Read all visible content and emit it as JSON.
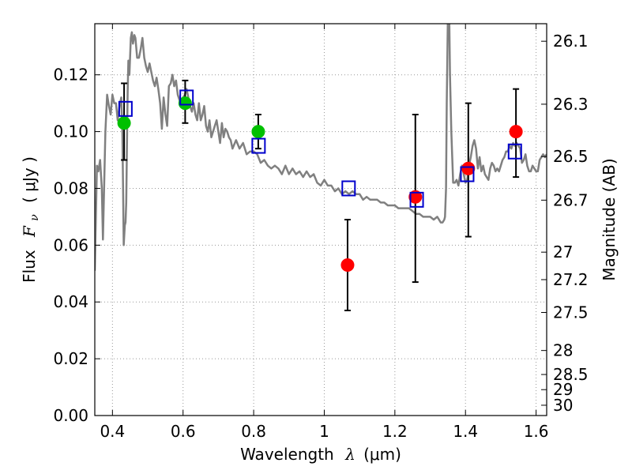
{
  "chart_data": {
    "type": "scatter",
    "xlabel": {
      "prefix": "Wavelength",
      "symbol": "λ",
      "unit": "(μm)"
    },
    "ylabel": {
      "prefix": "Flux",
      "symbol": "F",
      "subscript": "ν",
      "unit": "( μJy )"
    },
    "ylabel_right": "Magnitude (AB)",
    "xlim": [
      0.35,
      1.63
    ],
    "ylim": [
      0.0,
      0.138
    ],
    "grid": true,
    "x_ticks": [
      0.4,
      0.6,
      0.8,
      1.0,
      1.2,
      1.4,
      1.6
    ],
    "x_tick_labels": [
      "0.4",
      "0.6",
      "0.8",
      "1",
      "1.2",
      "1.4",
      "1.6"
    ],
    "y_ticks": [
      0.0,
      0.02,
      0.04,
      0.06,
      0.08,
      0.1,
      0.12
    ],
    "y_tick_labels": [
      "0.00",
      "0.02",
      "0.04",
      "0.06",
      "0.08",
      "0.10",
      "0.12"
    ],
    "mag_ticks": [
      26.1,
      26.3,
      26.5,
      26.7,
      27,
      27.2,
      27.5,
      28,
      28.5,
      29,
      30
    ],
    "mag_tick_labels": [
      "26.1",
      "26.3",
      "26.5",
      "26.7",
      "27",
      "27.2",
      "27.5",
      "28",
      "28.5",
      "29",
      "30"
    ],
    "colors": {
      "template": "#808080",
      "green_point": "#00c000",
      "red_point": "#ff0000",
      "model_square": "#0000cc",
      "errorbar": "#000000",
      "grid": "#999999"
    },
    "series": [
      {
        "kind": "template",
        "x": [
          0.35,
          0.356,
          0.36,
          0.365,
          0.37,
          0.373,
          0.376,
          0.38,
          0.385,
          0.39,
          0.395,
          0.4,
          0.405,
          0.41,
          0.415,
          0.42,
          0.425,
          0.428,
          0.43,
          0.432,
          0.435,
          0.437,
          0.439,
          0.441,
          0.443,
          0.445,
          0.448,
          0.452,
          0.455,
          0.458,
          0.462,
          0.465,
          0.47,
          0.475,
          0.48,
          0.485,
          0.49,
          0.495,
          0.5,
          0.505,
          0.51,
          0.515,
          0.52,
          0.525,
          0.53,
          0.535,
          0.54,
          0.545,
          0.55,
          0.555,
          0.56,
          0.565,
          0.57,
          0.575,
          0.58,
          0.585,
          0.59,
          0.595,
          0.6,
          0.605,
          0.61,
          0.615,
          0.62,
          0.625,
          0.63,
          0.635,
          0.64,
          0.645,
          0.65,
          0.655,
          0.66,
          0.665,
          0.67,
          0.675,
          0.68,
          0.685,
          0.69,
          0.695,
          0.7,
          0.705,
          0.71,
          0.715,
          0.72,
          0.725,
          0.73,
          0.735,
          0.74,
          0.75,
          0.76,
          0.77,
          0.78,
          0.79,
          0.8,
          0.81,
          0.82,
          0.83,
          0.84,
          0.85,
          0.86,
          0.87,
          0.88,
          0.89,
          0.9,
          0.91,
          0.92,
          0.93,
          0.94,
          0.95,
          0.96,
          0.97,
          0.98,
          0.99,
          1.0,
          1.01,
          1.02,
          1.03,
          1.04,
          1.05,
          1.06,
          1.07,
          1.08,
          1.09,
          1.1,
          1.11,
          1.12,
          1.13,
          1.14,
          1.15,
          1.16,
          1.17,
          1.18,
          1.19,
          1.2,
          1.21,
          1.22,
          1.23,
          1.24,
          1.25,
          1.26,
          1.27,
          1.28,
          1.29,
          1.3,
          1.31,
          1.32,
          1.33,
          1.335,
          1.34,
          1.342,
          1.345,
          1.347,
          1.35,
          1.352,
          1.354,
          1.356,
          1.36,
          1.365,
          1.37,
          1.375,
          1.38,
          1.385,
          1.39,
          1.395,
          1.4,
          1.405,
          1.41,
          1.415,
          1.42,
          1.425,
          1.43,
          1.435,
          1.44,
          1.445,
          1.45,
          1.455,
          1.46,
          1.465,
          1.47,
          1.475,
          1.48,
          1.485,
          1.49,
          1.495,
          1.5,
          1.505,
          1.51,
          1.515,
          1.52,
          1.525,
          1.53,
          1.535,
          1.54,
          1.545,
          1.55,
          1.555,
          1.56,
          1.565,
          1.57,
          1.575,
          1.58,
          1.585,
          1.59,
          1.595,
          1.6,
          1.605,
          1.61,
          1.615,
          1.62,
          1.625,
          1.63
        ],
        "y": [
          0.051,
          0.088,
          0.086,
          0.09,
          0.08,
          0.062,
          0.078,
          0.1,
          0.113,
          0.109,
          0.106,
          0.113,
          0.11,
          0.11,
          0.104,
          0.109,
          0.112,
          0.1,
          0.08,
          0.06,
          0.067,
          0.068,
          0.075,
          0.095,
          0.114,
          0.125,
          0.12,
          0.133,
          0.135,
          0.131,
          0.134,
          0.133,
          0.126,
          0.126,
          0.129,
          0.133,
          0.126,
          0.123,
          0.121,
          0.124,
          0.121,
          0.118,
          0.116,
          0.119,
          0.115,
          0.11,
          0.101,
          0.112,
          0.106,
          0.102,
          0.116,
          0.117,
          0.12,
          0.116,
          0.118,
          0.113,
          0.111,
          0.109,
          0.112,
          0.113,
          0.115,
          0.112,
          0.109,
          0.107,
          0.11,
          0.106,
          0.104,
          0.11,
          0.104,
          0.106,
          0.109,
          0.102,
          0.1,
          0.104,
          0.098,
          0.1,
          0.102,
          0.104,
          0.1,
          0.096,
          0.103,
          0.098,
          0.101,
          0.1,
          0.098,
          0.097,
          0.094,
          0.097,
          0.094,
          0.096,
          0.092,
          0.093,
          0.093,
          0.092,
          0.089,
          0.09,
          0.088,
          0.087,
          0.088,
          0.087,
          0.085,
          0.088,
          0.085,
          0.087,
          0.085,
          0.086,
          0.084,
          0.086,
          0.084,
          0.085,
          0.082,
          0.081,
          0.083,
          0.081,
          0.081,
          0.079,
          0.08,
          0.078,
          0.079,
          0.078,
          0.079,
          0.078,
          0.078,
          0.076,
          0.077,
          0.076,
          0.076,
          0.076,
          0.075,
          0.075,
          0.074,
          0.074,
          0.074,
          0.073,
          0.073,
          0.073,
          0.073,
          0.072,
          0.071,
          0.071,
          0.07,
          0.07,
          0.07,
          0.069,
          0.07,
          0.068,
          0.068,
          0.069,
          0.07,
          0.08,
          0.11,
          0.14,
          0.14,
          0.14,
          0.12,
          0.1,
          0.082,
          0.082,
          0.083,
          0.081,
          0.085,
          0.088,
          0.085,
          0.082,
          0.083,
          0.088,
          0.091,
          0.095,
          0.097,
          0.094,
          0.087,
          0.091,
          0.086,
          0.088,
          0.085,
          0.084,
          0.083,
          0.087,
          0.089,
          0.088,
          0.086,
          0.087,
          0.086,
          0.088,
          0.09,
          0.091,
          0.093,
          0.093,
          0.095,
          0.094,
          0.096,
          0.095,
          0.096,
          0.095,
          0.094,
          0.089,
          0.09,
          0.092,
          0.088,
          0.086,
          0.086,
          0.088,
          0.087,
          0.086,
          0.086,
          0.09,
          0.091,
          0.092,
          0.091,
          0.092
        ]
      },
      {
        "kind": "observed_green",
        "x": [
          0.433,
          0.606,
          0.813
        ],
        "y": [
          0.103,
          0.11,
          0.1
        ],
        "yerr_lo": [
          0.09,
          0.103,
          0.094
        ],
        "yerr_hi": [
          0.117,
          0.118,
          0.106
        ]
      },
      {
        "kind": "observed_red",
        "x": [
          1.066,
          1.258,
          1.408,
          1.543
        ],
        "y": [
          0.053,
          0.077,
          0.087,
          0.1
        ],
        "yerr_lo": [
          0.037,
          0.047,
          0.063,
          0.084
        ],
        "yerr_hi": [
          0.069,
          0.106,
          0.11,
          0.115
        ]
      },
      {
        "kind": "model_squares",
        "x": [
          0.437,
          0.61,
          0.814,
          1.069,
          1.262,
          1.405,
          1.54
        ],
        "y": [
          0.108,
          0.112,
          0.095,
          0.08,
          0.076,
          0.085,
          0.093
        ]
      }
    ]
  }
}
